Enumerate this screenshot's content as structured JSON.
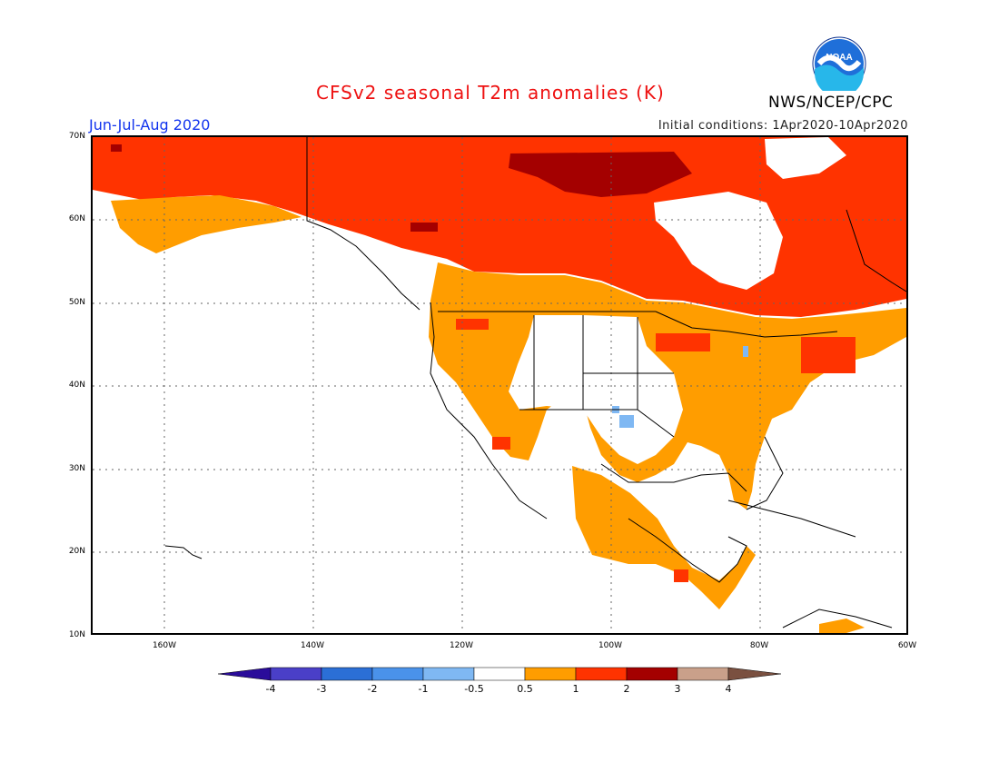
{
  "header": {
    "title": "CFSv2 seasonal T2m anomalies (K)",
    "season": "Jun-Jul-Aug 2020",
    "initial_conditions": "Initial conditions: 1Apr2020-10Apr2020",
    "agency": "NWS/NCEP/CPC",
    "logo_text": "NOAA"
  },
  "map": {
    "region": "North America",
    "lat_labels": [
      "70N",
      "60N",
      "50N",
      "40N",
      "30N",
      "20N",
      "10N"
    ],
    "lon_labels": [
      "160W",
      "140W",
      "120W",
      "100W",
      "80W",
      "60W"
    ]
  },
  "colorbar": {
    "ticks": [
      "-4",
      "-3",
      "-2",
      "-1",
      "-0.5",
      "0.5",
      "1",
      "2",
      "3",
      "4"
    ],
    "colors": [
      "#2a0c9a",
      "#4a3fc8",
      "#2b6fd6",
      "#4a92ea",
      "#7fb8f3",
      "#ffffff",
      "#ff9d00",
      "#ff3300",
      "#a40000",
      "#c9a08a",
      "#7a5040"
    ]
  }
}
